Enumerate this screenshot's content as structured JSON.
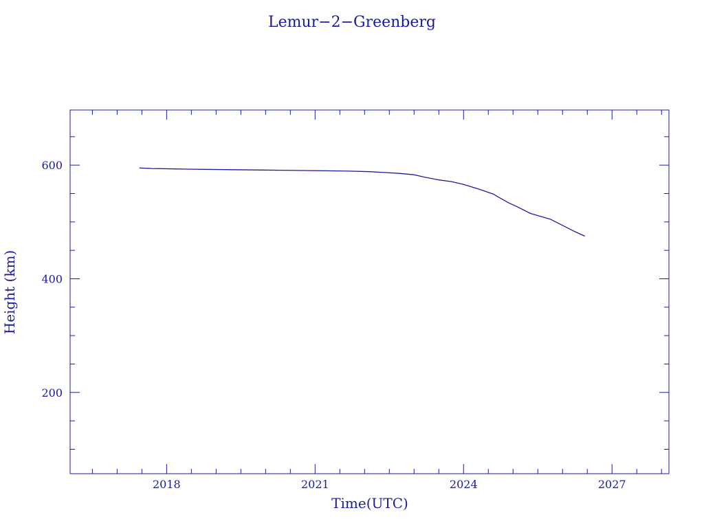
{
  "colors": {
    "ink": "#1a1a9e",
    "background": "#ffffff"
  },
  "chart_data": {
    "type": "line",
    "title": "Lemur−2−Greenberg",
    "xlabel": "Time(UTC)",
    "ylabel": "Height (km)",
    "x_axis_type": "time (decimal years)",
    "xlim": [
      2016.05,
      2028.15
    ],
    "ylim": [
      57,
      697
    ],
    "x_ticks": [
      {
        "value": 2018,
        "label": "2018"
      },
      {
        "value": 2021,
        "label": "2021"
      },
      {
        "value": 2024,
        "label": "2024"
      },
      {
        "value": 2027,
        "label": "2027"
      }
    ],
    "y_ticks": [
      {
        "value": 200,
        "label": "200"
      },
      {
        "value": 400,
        "label": "400"
      },
      {
        "value": 600,
        "label": "600"
      }
    ],
    "grid": false,
    "legend": "none",
    "series": [
      {
        "color": "#1a1a9e",
        "points": [
          [
            2017.45,
            595
          ],
          [
            2017.7,
            594
          ],
          [
            2018.4,
            593
          ],
          [
            2019.3,
            592
          ],
          [
            2020.3,
            591
          ],
          [
            2021.2,
            590
          ],
          [
            2021.7,
            589.5
          ],
          [
            2022.1,
            588.5
          ],
          [
            2022.4,
            587
          ],
          [
            2022.7,
            585.5
          ],
          [
            2023.0,
            583
          ],
          [
            2023.2,
            579
          ],
          [
            2023.5,
            574
          ],
          [
            2023.75,
            571
          ],
          [
            2024.0,
            566
          ],
          [
            2024.3,
            558
          ],
          [
            2024.6,
            549
          ],
          [
            2024.9,
            534
          ],
          [
            2025.1,
            526
          ],
          [
            2025.35,
            515
          ],
          [
            2025.55,
            510
          ],
          [
            2025.75,
            505
          ],
          [
            2026.0,
            494
          ],
          [
            2026.25,
            483
          ],
          [
            2026.45,
            475
          ]
        ]
      }
    ]
  }
}
